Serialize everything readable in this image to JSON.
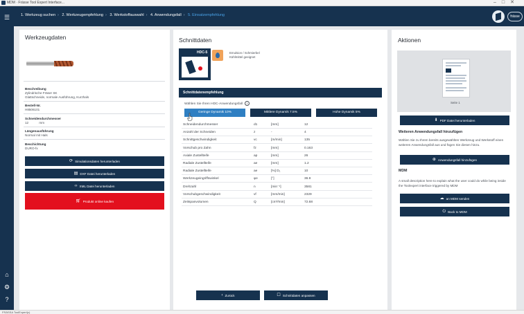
{
  "window": {
    "title": "MDM · Frässe Tool Expert Interface..."
  },
  "breadcrumbs": [
    {
      "label": "1. Werkzeug suchen",
      "state": "done"
    },
    {
      "label": "2. Werkzeugempfehlung",
      "state": "done"
    },
    {
      "label": "3. Werkstoffauswahl",
      "state": "done"
    },
    {
      "label": "4. Anwendungsfall",
      "state": "done"
    },
    {
      "label": "5. Einsatzempfehlung",
      "state": "active"
    }
  ],
  "brand": {
    "label": "frässe",
    "logo_icon": "cube-logo-icon"
  },
  "sidebar": {
    "icons": [
      "menu-icon",
      "home-icon",
      "settings-icon",
      "help-icon"
    ]
  },
  "left": {
    "title": "Werkzeugdaten",
    "fields": [
      {
        "label": "Beschreibung",
        "value": "Zylindrische Fräser SK"
      },
      {
        "label": "",
        "value": "Glattschneide, normale Ausführung, Kurzhals"
      },
      {
        "label": "Bestell-Nr.",
        "value": "H8506101"
      },
      {
        "label": "Schneidendurchmesser",
        "value": "12            mm"
      },
      {
        "label": "Längenausführung",
        "value": "Normal mit Hals"
      },
      {
        "label": "Beschichtung",
        "value": "DURO-fx"
      }
    ],
    "buttons": {
      "simulation": "Simulationsdaten herunterladen",
      "dxf": "DXF Datei herunterladen",
      "xml": "XML Datei herunterladen",
      "buy": "Produkt online kaufen"
    }
  },
  "middle": {
    "title": "Schnittdaten",
    "hdc_label": "HDC-5",
    "coolant_text_1": "Emulsion / Schmierbel",
    "coolant_text_2": "Kühlmittel geeignet",
    "section_title": "Schnittdatenempfehlung",
    "choose_text": "Wählen Sie Ihren HDC-Anwendungsfall",
    "dynamics": [
      {
        "label": "Geringe Dynamik 10%",
        "selected": true
      },
      {
        "label": "Mittlere Dynamik 7.5%",
        "selected": false
      },
      {
        "label": "Hohe Dynamik 5%",
        "selected": false
      }
    ],
    "rows": [
      {
        "name": "Schneidendurchmesser",
        "sym": "d1",
        "unit": "[mm]",
        "value": "12"
      },
      {
        "name": "Anzahl der Schneiden",
        "sym": "z",
        "unit": "-",
        "value": "4"
      },
      {
        "name": "Schnittgeschwindigkeit",
        "sym": "vc",
        "unit": "[m/min]",
        "value": "135"
      },
      {
        "name": "Vorschub pro Zahn",
        "sym": "fz",
        "unit": "[mm]",
        "value": "0.163"
      },
      {
        "name": "Axiale Zustellteife",
        "sym": "ap",
        "unit": "[mm]",
        "value": "26"
      },
      {
        "name": "Radiale Zustellteife",
        "sym": "ae",
        "unit": "[mm]",
        "value": "1.2"
      },
      {
        "name": "Radiale Zustellteife",
        "sym": "ae",
        "unit": "[%] D₁",
        "value": "10"
      },
      {
        "name": "Werkzeugeingriffswinkel",
        "sym": "φe",
        "unit": "[°]",
        "value": "36.9"
      },
      {
        "name": "Drehzahl",
        "sym": "n",
        "unit": "[min⁻¹]",
        "value": "3581"
      },
      {
        "name": "Vorschubgeschwindigkeit",
        "sym": "vf",
        "unit": "[mm/min]",
        "value": "2329"
      },
      {
        "name": "Zeitspanvolumen",
        "sym": "Q",
        "unit": "[cm³/min]",
        "value": "72.68"
      }
    ],
    "back_label": "Zurück",
    "adjust_label": "Schnittdaten anpassen"
  },
  "right": {
    "title": "Aktionen",
    "thumb_caption": "Seite 1",
    "pdf_label": "PDF Datei herunterladen",
    "add_heading": "Weiteren Anwendungsfall hinzufügen",
    "add_text": "Wählen Sie zu Ihrem bereits ausgewählten Werkzeug und Werkstoff einen weiteren Anwendungsfall aus und fügen Sie diesen hinzu.",
    "add_button": "Anwendungsfall hinzufügen",
    "mdm_heading": "MDM",
    "mdm_text": "A small description here to explain what the user could do while being inside the Toolexpert interface triggered by MDM",
    "send_button": "an MDM senden",
    "back_button": "Back to MDM"
  },
  "status": {
    "text": "FRÄSSA ToolExpert(c)"
  },
  "colors": {
    "navy": "#16324f",
    "accent_blue": "#2f7fc2",
    "red": "#e3101e",
    "panel_bg": "#e6e8eb"
  }
}
